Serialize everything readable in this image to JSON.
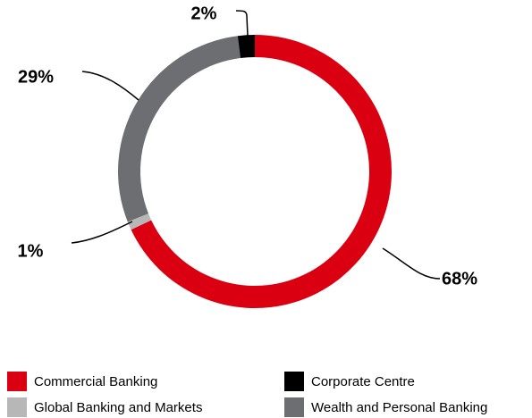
{
  "chart_data": {
    "type": "donut",
    "series": [
      {
        "name": "Commercial Banking",
        "color": "#db0011",
        "value": 68,
        "value_label": "68%"
      },
      {
        "name": "Global Banking and Markets",
        "color": "#b6b7b6",
        "value": 1,
        "value_label": "1%"
      },
      {
        "name": "Wealth and Personal Banking",
        "color": "#6d6e71",
        "value": 29,
        "value_label": "29%"
      },
      {
        "name": "Corporate Centre",
        "color": "#000000",
        "value": 2,
        "value_label": "2%"
      }
    ]
  }
}
